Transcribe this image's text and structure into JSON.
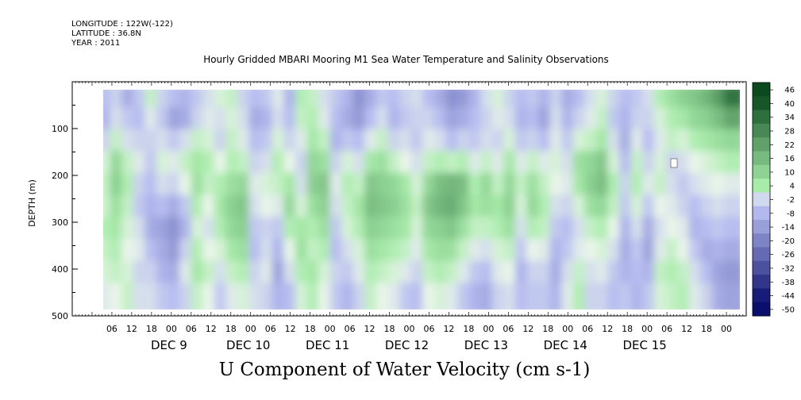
{
  "header": {
    "longitude": "LONGITUDE : 122W(-122)",
    "latitude": "LATITUDE : 36.8N",
    "year": "YEAR : 2011",
    "title": "Hourly Gridded MBARI Mooring M1 Sea Water Temperature and Salinity Observations"
  },
  "colors": {
    "negative_strong": "#0a0f6e",
    "negative_light": "#b7bdf0",
    "neutral": "#e9f5e9",
    "positive_light": "#a8ecaa",
    "positive_strong": "#0a4a1e",
    "nodata": "#ffffff"
  },
  "chart_data": {
    "type": "heatmap",
    "title": "U Component of Water Velocity (cm s-1)",
    "ylabel": "DEPTH (m)",
    "ylim": [
      500,
      0
    ],
    "y_ticks": [
      100,
      200,
      300,
      400,
      500
    ],
    "x_ticks": [
      "06",
      "12",
      "18",
      "00",
      "06",
      "12",
      "18",
      "00",
      "06",
      "12",
      "18",
      "00",
      "06",
      "12",
      "18",
      "00",
      "06",
      "12",
      "18",
      "00",
      "06",
      "12",
      "18",
      "00",
      "06",
      "12",
      "18",
      "00",
      "06",
      "12",
      "18",
      "00"
    ],
    "day_labels": [
      "DEC  9",
      "DEC 10",
      "DEC 11",
      "DEC 12",
      "DEC 13",
      "DEC 14",
      "DEC 15"
    ],
    "colorbar_ticks": [
      46,
      40,
      34,
      28,
      22,
      16,
      10,
      4,
      -2,
      -8,
      -14,
      -20,
      -26,
      -32,
      -38,
      -44,
      -50
    ],
    "value_range": [
      -50,
      46
    ],
    "x": [
      "DEC 9 06",
      "DEC 9 09",
      "DEC 9 12",
      "DEC 9 15",
      "DEC 9 18",
      "DEC 9 21",
      "DEC 10 00",
      "DEC 10 03",
      "DEC 10 06",
      "DEC 10 09",
      "DEC 10 12",
      "DEC 10 15",
      "DEC 10 18",
      "DEC 10 21",
      "DEC 11 00",
      "DEC 11 03",
      "DEC 11 06",
      "DEC 11 09",
      "DEC 11 12",
      "DEC 11 15",
      "DEC 11 18",
      "DEC 11 21",
      "DEC 12 00",
      "DEC 12 03",
      "DEC 12 06",
      "DEC 12 09",
      "DEC 12 12",
      "DEC 12 15",
      "DEC 12 18",
      "DEC 12 21",
      "DEC 13 00",
      "DEC 13 03",
      "DEC 13 06",
      "DEC 13 09",
      "DEC 13 12",
      "DEC 13 15",
      "DEC 13 18",
      "DEC 13 21",
      "DEC 14 00",
      "DEC 14 03",
      "DEC 14 06",
      "DEC 14 09",
      "DEC 14 12",
      "DEC 14 15",
      "DEC 14 18",
      "DEC 14 21",
      "DEC 15 00",
      "DEC 15 03",
      "DEC 15 06",
      "DEC 15 09",
      "DEC 15 12",
      "DEC 15 15",
      "DEC 15 18",
      "DEC 15 21",
      "DEC 16 00"
    ],
    "depths": [
      25,
      75,
      125,
      175,
      225,
      275,
      325,
      375,
      425,
      475
    ],
    "values": [
      [
        -10,
        -12,
        -6,
        2,
        4,
        3,
        6,
        4,
        2,
        -2
      ],
      [
        -6,
        -4,
        4,
        12,
        14,
        10,
        8,
        6,
        4,
        0
      ],
      [
        -14,
        -8,
        -4,
        4,
        6,
        4,
        2,
        0,
        2,
        4
      ],
      [
        -8,
        -10,
        -6,
        -2,
        -6,
        -8,
        -4,
        -2,
        -6,
        -4
      ],
      [
        4,
        -2,
        -6,
        -8,
        -10,
        -12,
        -14,
        -10,
        -6,
        -4
      ],
      [
        -6,
        -8,
        -4,
        2,
        -4,
        -10,
        -16,
        -14,
        -12,
        -8
      ],
      [
        -10,
        -16,
        -8,
        -2,
        -6,
        -14,
        -20,
        -18,
        -14,
        -10
      ],
      [
        -12,
        -14,
        -4,
        4,
        0,
        -8,
        -12,
        -6,
        -2,
        -6
      ],
      [
        -8,
        -6,
        4,
        8,
        10,
        6,
        2,
        6,
        8,
        4
      ],
      [
        -4,
        -2,
        2,
        6,
        4,
        0,
        -4,
        0,
        4,
        0
      ],
      [
        2,
        -4,
        -6,
        0,
        6,
        8,
        6,
        2,
        -4,
        -8
      ],
      [
        4,
        2,
        4,
        6,
        10,
        14,
        12,
        8,
        4,
        -2
      ],
      [
        -6,
        -4,
        -2,
        4,
        12,
        16,
        14,
        10,
        6,
        2
      ],
      [
        -10,
        -14,
        -10,
        -6,
        -2,
        -4,
        -8,
        -10,
        -6,
        -4
      ],
      [
        -8,
        -12,
        -8,
        -4,
        2,
        0,
        -6,
        -4,
        -2,
        -6
      ],
      [
        -2,
        -4,
        2,
        6,
        4,
        -2,
        -8,
        -12,
        -16,
        -12
      ],
      [
        -12,
        -10,
        -6,
        0,
        8,
        12,
        6,
        0,
        -4,
        -10
      ],
      [
        6,
        4,
        -2,
        -6,
        -4,
        2,
        8,
        10,
        6,
        2
      ],
      [
        4,
        6,
        8,
        12,
        14,
        10,
        6,
        4,
        8,
        6
      ],
      [
        -4,
        -2,
        4,
        10,
        16,
        14,
        10,
        6,
        2,
        0
      ],
      [
        -8,
        -10,
        -12,
        -6,
        -2,
        -4,
        -8,
        -10,
        -6,
        -8
      ],
      [
        -12,
        -14,
        -8,
        2,
        6,
        4,
        2,
        -4,
        -8,
        -12
      ],
      [
        -20,
        -18,
        -10,
        -4,
        4,
        8,
        6,
        2,
        -2,
        -6
      ],
      [
        -14,
        -10,
        -2,
        8,
        16,
        18,
        14,
        10,
        6,
        4
      ],
      [
        -8,
        -4,
        4,
        10,
        14,
        16,
        12,
        8,
        4,
        0
      ],
      [
        -10,
        -12,
        -6,
        4,
        12,
        14,
        10,
        6,
        2,
        -2
      ],
      [
        -6,
        -8,
        -4,
        0,
        8,
        10,
        8,
        4,
        -2,
        -8
      ],
      [
        -4,
        -6,
        -8,
        -4,
        2,
        4,
        2,
        -2,
        -6,
        -10
      ],
      [
        -10,
        -6,
        -2,
        4,
        12,
        16,
        12,
        8,
        4,
        0
      ],
      [
        -14,
        -10,
        -4,
        6,
        18,
        20,
        14,
        10,
        6,
        2
      ],
      [
        -20,
        -16,
        -10,
        4,
        20,
        22,
        16,
        10,
        4,
        -2
      ],
      [
        -18,
        -14,
        -6,
        6,
        18,
        16,
        10,
        4,
        -2,
        -8
      ],
      [
        -12,
        -10,
        -8,
        -2,
        6,
        8,
        4,
        -2,
        -8,
        -12
      ],
      [
        -4,
        -6,
        -4,
        4,
        12,
        10,
        4,
        -4,
        -10,
        -14
      ],
      [
        2,
        -2,
        -6,
        -2,
        4,
        8,
        6,
        2,
        -2,
        -6
      ],
      [
        -6,
        -4,
        2,
        8,
        12,
        14,
        10,
        4,
        0,
        -4
      ],
      [
        -10,
        -12,
        -8,
        -2,
        4,
        2,
        -4,
        -8,
        -12,
        -10
      ],
      [
        -8,
        -10,
        -6,
        4,
        10,
        12,
        6,
        0,
        -6,
        -8
      ],
      [
        -12,
        -16,
        -10,
        -2,
        4,
        6,
        4,
        -2,
        -6,
        -8
      ],
      [
        -6,
        -4,
        -2,
        2,
        0,
        -4,
        -8,
        -12,
        -14,
        -12
      ],
      [
        -14,
        -12,
        -8,
        -4,
        -2,
        -6,
        -10,
        -8,
        -4,
        -2
      ],
      [
        -10,
        -6,
        2,
        10,
        8,
        2,
        -4,
        -2,
        4,
        6
      ],
      [
        -4,
        -2,
        4,
        12,
        14,
        10,
        4,
        0,
        -4,
        -6
      ],
      [
        2,
        4,
        8,
        16,
        18,
        12,
        6,
        2,
        -2,
        -6
      ],
      [
        -6,
        -8,
        -4,
        2,
        6,
        4,
        0,
        -4,
        -8,
        -10
      ],
      [
        -10,
        -12,
        -14,
        -10,
        -6,
        -8,
        -12,
        -14,
        -12,
        -8
      ],
      [
        -8,
        -6,
        -2,
        4,
        6,
        2,
        -4,
        -8,
        -10,
        -12
      ],
      [
        -4,
        -6,
        -10,
        -6,
        -2,
        -8,
        -14,
        -16,
        -12,
        -8
      ],
      [
        6,
        2,
        -2,
        2,
        4,
        0,
        -4,
        -2,
        4,
        2
      ],
      [
        10,
        6,
        4,
        -6,
        -4,
        -2,
        0,
        4,
        6,
        4
      ],
      [
        14,
        8,
        2,
        -4,
        -8,
        -6,
        -2,
        0,
        4,
        6
      ],
      [
        16,
        12,
        6,
        0,
        -4,
        -10,
        -12,
        -8,
        -4,
        -2
      ],
      [
        20,
        14,
        8,
        2,
        -2,
        -6,
        -10,
        -14,
        -10,
        -6
      ],
      [
        26,
        18,
        10,
        4,
        0,
        -4,
        -8,
        -12,
        -16,
        -14
      ],
      [
        36,
        24,
        12,
        6,
        -2,
        -6,
        -10,
        -14,
        -18,
        -16
      ]
    ]
  }
}
